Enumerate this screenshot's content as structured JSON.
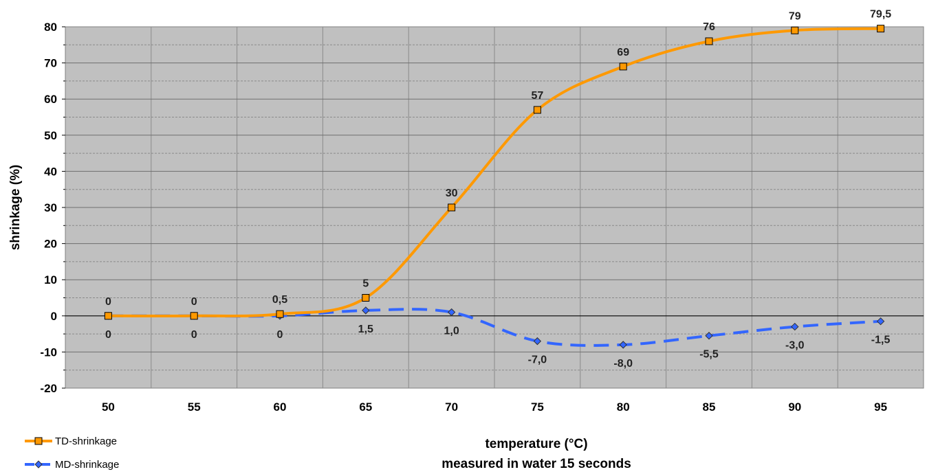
{
  "chart_data": {
    "type": "line",
    "x": [
      50,
      55,
      60,
      65,
      70,
      75,
      80,
      85,
      90,
      95
    ],
    "xlabel_line1": "temperature (°C)",
    "xlabel_line2": "measured in water 15 seconds",
    "ylabel": "shrinkage (%)",
    "ylim": [
      -20,
      80
    ],
    "yticks": [
      -20,
      -10,
      0,
      10,
      20,
      30,
      40,
      50,
      60,
      70,
      80
    ],
    "grid": true,
    "legend_position": "bottom-left",
    "series": [
      {
        "name": "TD-shrinkage",
        "color": "#FF9900",
        "marker": "square",
        "line_style": "solid",
        "values": [
          0,
          0,
          0.5,
          5,
          30,
          57,
          69,
          76,
          79,
          79.5
        ],
        "labels": [
          "0",
          "0",
          "0,5",
          "5",
          "30",
          "57",
          "69",
          "76",
          "79",
          "79,5"
        ]
      },
      {
        "name": "MD-shrinkage",
        "color": "#3366FF",
        "marker": "diamond",
        "line_style": "dashed",
        "values": [
          0,
          0,
          0,
          1.5,
          1.0,
          -7.0,
          -8.0,
          -5.5,
          -3.0,
          -1.5
        ],
        "labels": [
          "0",
          "0",
          "0",
          "1,5",
          "1,0",
          "-7,0",
          "-8,0",
          "-5,5",
          "-3,0",
          "-1,5"
        ]
      }
    ]
  }
}
